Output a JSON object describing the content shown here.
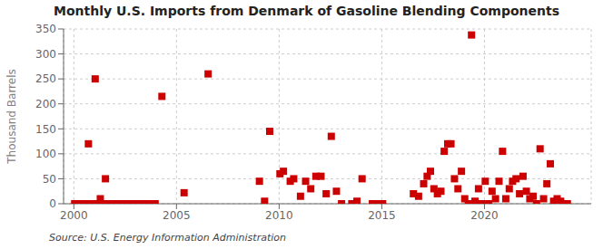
{
  "chart_data": {
    "type": "scatter",
    "title": "Monthly U.S. Imports from Denmark of Gasoline Blending Components",
    "ylabel": "Thousand Barrels",
    "annotations": [
      "Source: U.S. Energy Information Administration"
    ],
    "color": "#cc0000",
    "marker": "square",
    "grid": true,
    "xlim": [
      1999.5,
      2025.2
    ],
    "xticks": [
      2000,
      2005,
      2010,
      2015,
      2020
    ],
    "ylim": [
      0,
      350
    ],
    "yticks": [
      0,
      50,
      100,
      150,
      200,
      250,
      300,
      350
    ],
    "x": [
      2000.04,
      2000.12,
      2000.21,
      2000.29,
      2000.37,
      2000.46,
      2000.54,
      2000.62,
      2000.71,
      2000.79,
      2000.88,
      2000.96,
      2001.04,
      2001.12,
      2001.21,
      2001.29,
      2001.37,
      2001.46,
      2001.54,
      2001.62,
      2001.71,
      2001.79,
      2001.88,
      2001.96,
      2002.04,
      2002.12,
      2002.21,
      2002.29,
      2002.37,
      2002.46,
      2002.54,
      2002.62,
      2002.71,
      2002.79,
      2002.88,
      2002.96,
      2003.04,
      2003.12,
      2003.21,
      2003.29,
      2003.37,
      2003.46,
      2003.54,
      2003.62,
      2003.71,
      2003.79,
      2003.88,
      2003.96,
      2004.29,
      2005.37,
      2006.54,
      2009.04,
      2009.29,
      2009.54,
      2010.04,
      2010.21,
      2010.54,
      2010.71,
      2011.04,
      2011.29,
      2011.54,
      2011.79,
      2012.04,
      2012.29,
      2012.54,
      2012.79,
      2013.04,
      2013.54,
      2013.79,
      2014.04,
      2014.54,
      2014.79,
      2015.04,
      2016.54,
      2016.79,
      2017.04,
      2017.21,
      2017.37,
      2017.54,
      2017.71,
      2017.88,
      2018.04,
      2018.21,
      2018.37,
      2018.54,
      2018.71,
      2018.88,
      2019.04,
      2019.21,
      2019.37,
      2019.54,
      2019.71,
      2019.88,
      2020.04,
      2020.21,
      2020.37,
      2020.54,
      2020.71,
      2020.88,
      2021.04,
      2021.21,
      2021.37,
      2021.54,
      2021.71,
      2021.88,
      2022.04,
      2022.21,
      2022.37,
      2022.54,
      2022.71,
      2022.88,
      2023.04,
      2023.21,
      2023.37,
      2023.54,
      2023.71,
      2023.88,
      2024.04
    ],
    "values": [
      0,
      0,
      0,
      0,
      0,
      0,
      0,
      0,
      120,
      0,
      0,
      0,
      250,
      0,
      0,
      10,
      0,
      0,
      50,
      0,
      0,
      0,
      0,
      0,
      0,
      0,
      0,
      0,
      0,
      0,
      0,
      0,
      0,
      0,
      0,
      0,
      0,
      0,
      0,
      0,
      0,
      0,
      0,
      0,
      0,
      0,
      0,
      0,
      215,
      22,
      260,
      45,
      5,
      145,
      60,
      65,
      45,
      50,
      15,
      45,
      30,
      55,
      55,
      20,
      135,
      25,
      0,
      0,
      5,
      50,
      0,
      0,
      0,
      20,
      15,
      40,
      55,
      65,
      30,
      20,
      25,
      105,
      120,
      120,
      50,
      30,
      65,
      10,
      0,
      338,
      5,
      30,
      0,
      45,
      0,
      25,
      10,
      45,
      105,
      10,
      30,
      45,
      50,
      20,
      55,
      25,
      10,
      15,
      0,
      110,
      10,
      40,
      80,
      5,
      10,
      5,
      0,
      0
    ]
  }
}
